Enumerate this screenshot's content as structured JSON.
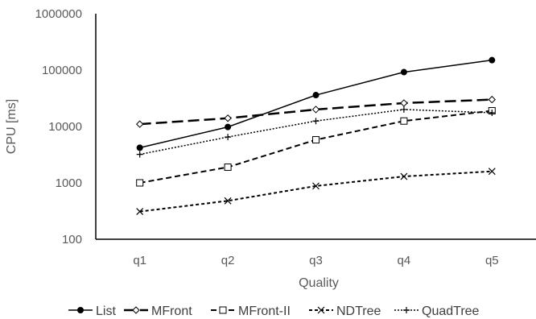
{
  "chart_data": {
    "type": "line",
    "title": "",
    "xlabel": "Quality",
    "ylabel": "CPU [ms]",
    "yscale": "log",
    "ylim": [
      100,
      1000000
    ],
    "y_ticks": [
      "100",
      "1000",
      "10000",
      "100000",
      "1000000"
    ],
    "categories": [
      "q1",
      "q2",
      "q3",
      "q4",
      "q5"
    ],
    "grid": false,
    "legend": "bottom",
    "series": [
      {
        "name": "List",
        "values": [
          4200,
          9800,
          36000,
          92000,
          150000
        ],
        "color": "#000000",
        "dash": "",
        "marker": "dot",
        "stroke_width": 1.5
      },
      {
        "name": "MFront",
        "values": [
          11000,
          14000,
          20000,
          26000,
          30000
        ],
        "color": "#000000",
        "dash": "14 6",
        "marker": "diamond",
        "stroke_width": 2.5
      },
      {
        "name": "MFront-II",
        "values": [
          1000,
          1900,
          5800,
          12500,
          19000
        ],
        "color": "#000000",
        "dash": "7 4",
        "marker": "square",
        "stroke_width": 2
      },
      {
        "name": "NDTree",
        "values": [
          310,
          480,
          880,
          1300,
          1600
        ],
        "color": "#000000",
        "dash": "4 3",
        "marker": "x",
        "stroke_width": 2
      },
      {
        "name": "QuadTree",
        "values": [
          3200,
          6500,
          12500,
          20000,
          17500
        ],
        "color": "#000000",
        "dash": "2 2",
        "marker": "plus",
        "stroke_width": 1.5
      }
    ]
  }
}
